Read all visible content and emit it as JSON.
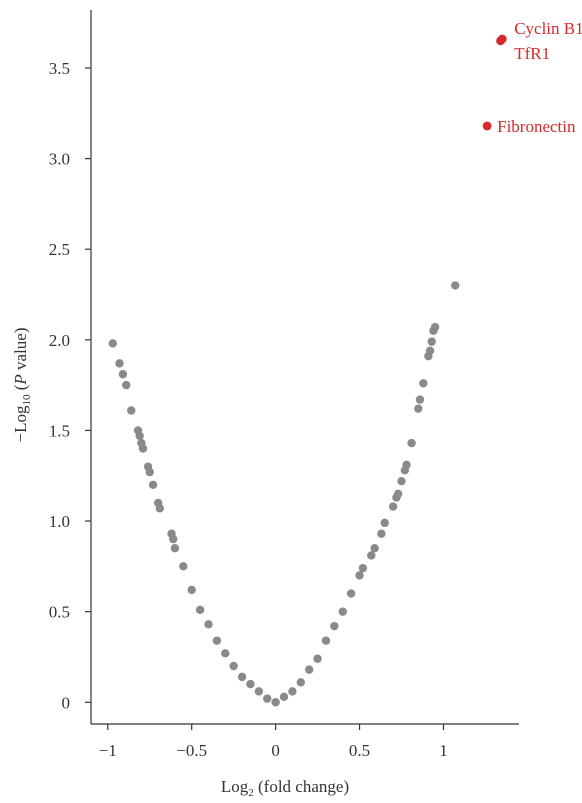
{
  "chart_data": {
    "type": "scatter",
    "title": "",
    "xlabel": "Log2 (fold change)",
    "xlabel_main": "Log",
    "xlabel_sub": "2",
    "xlabel_rest": " (fold change)",
    "ylabel": "-Log10 (P value)",
    "ylabel_prefix": "−Log",
    "ylabel_sub": "10",
    "ylabel_open": " (",
    "ylabel_p": "P",
    "ylabel_rest": " value)",
    "xlim": [
      -1.1,
      1.45
    ],
    "ylim": [
      -0.12,
      3.82
    ],
    "x_ticks": [
      -1,
      -0.5,
      0,
      0.5,
      1
    ],
    "x_tick_labels": [
      "−1",
      "−0.5",
      "0",
      "0.5",
      "1"
    ],
    "y_ticks": [
      0,
      0.5,
      1.0,
      1.5,
      2.0,
      2.5,
      3.0,
      3.5
    ],
    "y_tick_labels": [
      "0",
      "0.5",
      "1.0",
      "1.5",
      "2.0",
      "2.5",
      "3.0",
      "3.5"
    ],
    "grid": false,
    "colors": {
      "background_points": "#8a8a8a",
      "highlight_points": "#d7282a",
      "axis": "#333333"
    },
    "series": [
      {
        "name": "",
        "color": "#8a8a8a",
        "points": [
          [
            -0.97,
            1.98
          ],
          [
            -0.93,
            1.87
          ],
          [
            -0.91,
            1.81
          ],
          [
            -0.89,
            1.75
          ],
          [
            -0.86,
            1.61
          ],
          [
            -0.82,
            1.5
          ],
          [
            -0.81,
            1.47
          ],
          [
            -0.8,
            1.43
          ],
          [
            -0.79,
            1.4
          ],
          [
            -0.76,
            1.3
          ],
          [
            -0.75,
            1.27
          ],
          [
            -0.73,
            1.2
          ],
          [
            -0.7,
            1.1
          ],
          [
            -0.69,
            1.07
          ],
          [
            -0.62,
            0.93
          ],
          [
            -0.61,
            0.9
          ],
          [
            -0.6,
            0.85
          ],
          [
            -0.55,
            0.75
          ],
          [
            -0.5,
            0.62
          ],
          [
            -0.45,
            0.51
          ],
          [
            -0.4,
            0.43
          ],
          [
            -0.35,
            0.34
          ],
          [
            -0.3,
            0.27
          ],
          [
            -0.25,
            0.2
          ],
          [
            -0.2,
            0.14
          ],
          [
            -0.15,
            0.1
          ],
          [
            -0.1,
            0.06
          ],
          [
            -0.05,
            0.02
          ],
          [
            0.0,
            0.0
          ],
          [
            0.05,
            0.03
          ],
          [
            0.1,
            0.06
          ],
          [
            0.15,
            0.11
          ],
          [
            0.2,
            0.18
          ],
          [
            0.25,
            0.24
          ],
          [
            0.3,
            0.34
          ],
          [
            0.35,
            0.42
          ],
          [
            0.4,
            0.5
          ],
          [
            0.45,
            0.6
          ],
          [
            0.5,
            0.7
          ],
          [
            0.52,
            0.74
          ],
          [
            0.57,
            0.81
          ],
          [
            0.59,
            0.85
          ],
          [
            0.63,
            0.93
          ],
          [
            0.65,
            0.99
          ],
          [
            0.7,
            1.08
          ],
          [
            0.72,
            1.13
          ],
          [
            0.73,
            1.15
          ],
          [
            0.75,
            1.22
          ],
          [
            0.77,
            1.28
          ],
          [
            0.78,
            1.31
          ],
          [
            0.81,
            1.43
          ],
          [
            0.85,
            1.62
          ],
          [
            0.86,
            1.67
          ],
          [
            0.88,
            1.76
          ],
          [
            0.91,
            1.91
          ],
          [
            0.92,
            1.94
          ],
          [
            0.93,
            1.99
          ],
          [
            0.94,
            2.05
          ],
          [
            0.95,
            2.07
          ],
          [
            1.07,
            2.3
          ]
        ]
      },
      {
        "name": "",
        "color": "#d7282a",
        "points": [
          [
            1.35,
            3.66
          ],
          [
            1.34,
            3.65
          ],
          [
            1.26,
            3.18
          ]
        ]
      }
    ],
    "annotations": [
      {
        "text": "Cyclin B1",
        "x": 1.35,
        "y": 3.66,
        "anchor": "above"
      },
      {
        "text": "TfR1",
        "x": 1.35,
        "y": 3.66,
        "anchor": "below"
      },
      {
        "text": "Fibronectin",
        "x": 1.26,
        "y": 3.18,
        "anchor": "right"
      }
    ]
  }
}
